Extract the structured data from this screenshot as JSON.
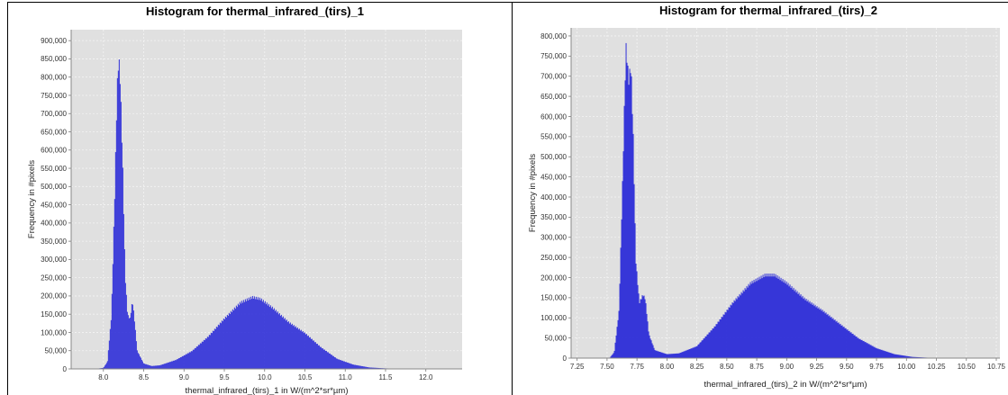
{
  "colors": {
    "plot_bg": "#e0e0e0",
    "bar": "#2f2fd8",
    "bar_edge": "#1e1eb0",
    "grid": "#f4f4f4"
  },
  "chart_data": [
    {
      "type": "bar",
      "title": "Histogram for thermal_infrared_(tirs)_1",
      "xlabel": "thermal_infrared_(tirs)_1 in W/(m^2*sr*µm)",
      "ylabel": "Frequency in #pixels",
      "xlim": [
        7.6,
        12.45
      ],
      "ylim": [
        0,
        930000
      ],
      "xticks": [
        "8.0",
        "8.5",
        "9.0",
        "9.5",
        "10.0",
        "10.5",
        "11.0",
        "11.5",
        "12.0"
      ],
      "yticks": [
        "0",
        "50,000",
        "100,000",
        "150,000",
        "200,000",
        "250,000",
        "300,000",
        "350,000",
        "400,000",
        "450,000",
        "500,000",
        "550,000",
        "600,000",
        "650,000",
        "700,000",
        "750,000",
        "800,000",
        "850,000",
        "900,000"
      ],
      "grid": true,
      "profile": [
        [
          7.9,
          0
        ],
        [
          8.0,
          3000
        ],
        [
          8.05,
          20000
        ],
        [
          8.1,
          150000
        ],
        [
          8.14,
          480000
        ],
        [
          8.17,
          780000
        ],
        [
          8.19,
          870000
        ],
        [
          8.21,
          800000
        ],
        [
          8.24,
          560000
        ],
        [
          8.27,
          260000
        ],
        [
          8.3,
          150000
        ],
        [
          8.33,
          140000
        ],
        [
          8.36,
          190000
        ],
        [
          8.38,
          150000
        ],
        [
          8.42,
          50000
        ],
        [
          8.5,
          15000
        ],
        [
          8.6,
          8000
        ],
        [
          8.7,
          10000
        ],
        [
          8.9,
          25000
        ],
        [
          9.1,
          50000
        ],
        [
          9.3,
          90000
        ],
        [
          9.5,
          140000
        ],
        [
          9.7,
          185000
        ],
        [
          9.85,
          200000
        ],
        [
          9.95,
          195000
        ],
        [
          10.1,
          170000
        ],
        [
          10.3,
          130000
        ],
        [
          10.5,
          100000
        ],
        [
          10.7,
          60000
        ],
        [
          10.9,
          28000
        ],
        [
          11.1,
          12000
        ],
        [
          11.3,
          4000
        ],
        [
          11.5,
          1500
        ],
        [
          11.7,
          0
        ]
      ]
    },
    {
      "type": "bar",
      "title": "Histogram for thermal_infrared_(tirs)_2",
      "xlabel": "thermal_infrared_(tirs)_2 in W/(m^2*sr*µm)",
      "ylabel": "Frequency in #pixels",
      "xlim": [
        7.2,
        10.78
      ],
      "ylim": [
        0,
        820000
      ],
      "xticks": [
        "7.25",
        "7.50",
        "7.75",
        "8.00",
        "8.25",
        "8.50",
        "8.75",
        "9.00",
        "9.25",
        "9.50",
        "9.75",
        "10.00",
        "10.25",
        "10.50",
        "10.75"
      ],
      "yticks": [
        "0",
        "50,000",
        "100,000",
        "150,000",
        "200,000",
        "250,000",
        "300,000",
        "350,000",
        "400,000",
        "450,000",
        "500,000",
        "550,000",
        "600,000",
        "650,000",
        "700,000",
        "750,000",
        "800,000"
      ],
      "grid": true,
      "profile": [
        [
          7.52,
          0
        ],
        [
          7.56,
          15000
        ],
        [
          7.6,
          120000
        ],
        [
          7.63,
          450000
        ],
        [
          7.65,
          700000
        ],
        [
          7.66,
          790000
        ],
        [
          7.68,
          700000
        ],
        [
          7.7,
          740000
        ],
        [
          7.72,
          550000
        ],
        [
          7.74,
          250000
        ],
        [
          7.77,
          140000
        ],
        [
          7.8,
          160000
        ],
        [
          7.82,
          150000
        ],
        [
          7.85,
          60000
        ],
        [
          7.9,
          20000
        ],
        [
          8.0,
          10000
        ],
        [
          8.1,
          12000
        ],
        [
          8.25,
          30000
        ],
        [
          8.4,
          80000
        ],
        [
          8.55,
          140000
        ],
        [
          8.7,
          190000
        ],
        [
          8.82,
          210000
        ],
        [
          8.9,
          210000
        ],
        [
          9.0,
          190000
        ],
        [
          9.15,
          150000
        ],
        [
          9.3,
          120000
        ],
        [
          9.45,
          85000
        ],
        [
          9.6,
          50000
        ],
        [
          9.75,
          25000
        ],
        [
          9.9,
          10000
        ],
        [
          10.05,
          3000
        ],
        [
          10.2,
          800
        ],
        [
          10.35,
          0
        ]
      ]
    }
  ]
}
